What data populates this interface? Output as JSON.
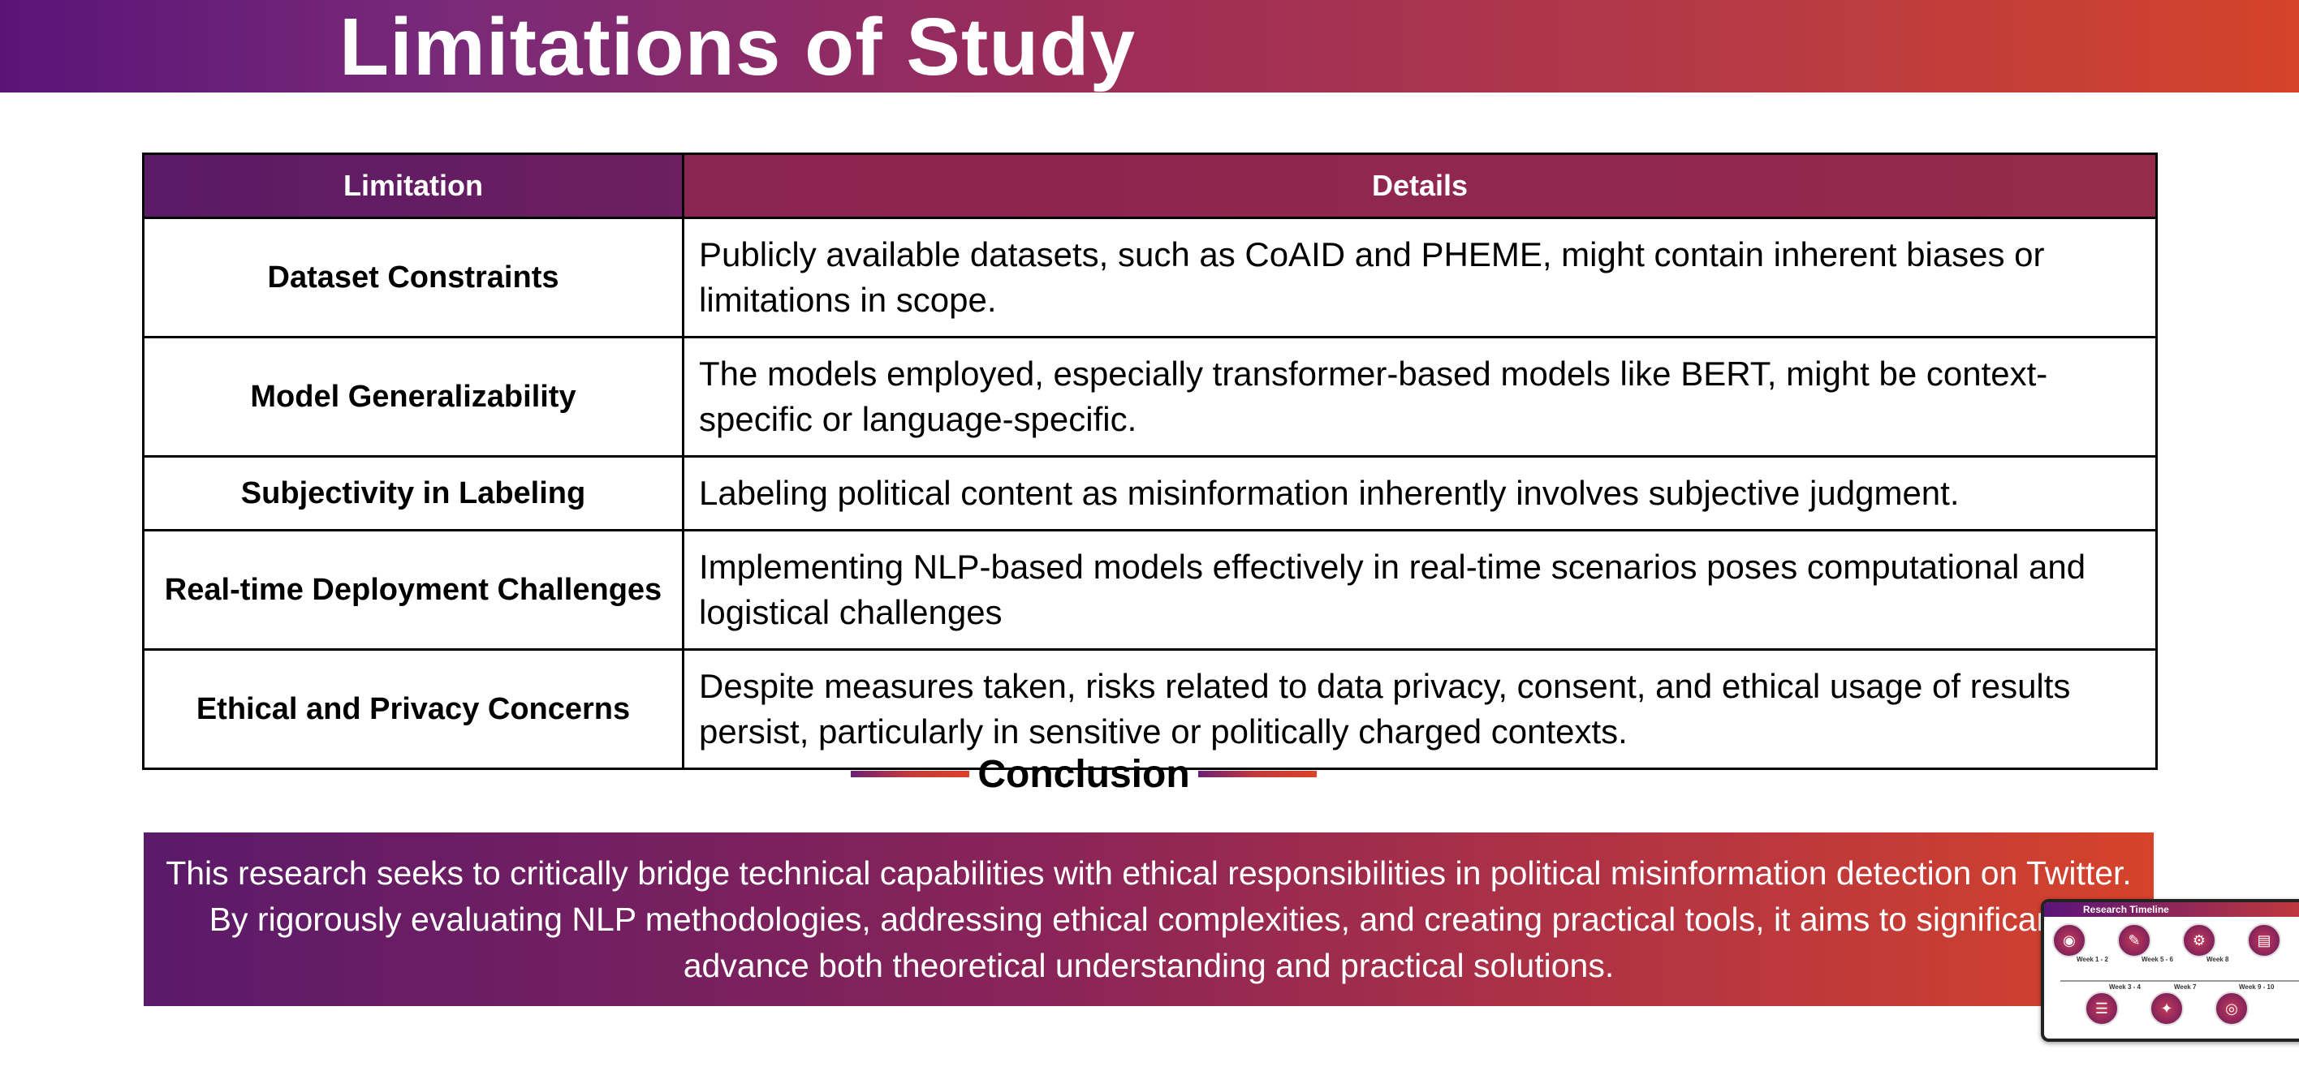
{
  "slide": {
    "title": "Limitations of Study"
  },
  "table": {
    "headers": [
      "Limitation",
      "Details"
    ],
    "rows": [
      {
        "limitation": "Dataset Constraints",
        "details": "Publicly available datasets, such as CoAID and PHEME, might contain inherent biases or limitations in scope."
      },
      {
        "limitation": "Model Generalizability",
        "details": "The models employed, especially transformer-based models like BERT, might be context-specific or language-specific."
      },
      {
        "limitation": "Subjectivity in Labeling",
        "details": "Labeling political content as misinformation inherently involves subjective judgment."
      },
      {
        "limitation": "Real-time Deployment Challenges",
        "details": "Implementing NLP-based models effectively in real-time scenarios poses computational and logistical challenges"
      },
      {
        "limitation": "Ethical and Privacy Concerns",
        "details": "Despite measures taken, risks related to data privacy, consent, and ethical usage of results persist, particularly in sensitive or politically charged contexts."
      }
    ]
  },
  "conclusion": {
    "heading": "Conclusion",
    "text": "This research seeks to critically bridge technical capabilities with ethical responsibilities in political misinformation detection on Twitter. By rigorously evaluating NLP methodologies, addressing ethical complexities, and creating practical tools, it aims to significantly advance both theoretical understanding and practical solutions."
  },
  "thumbnail": {
    "title": "Research Timeline",
    "labels": [
      "Week 1 - 2",
      "Week 3 - 4",
      "Week 5 - 6",
      "Week 7",
      "Week 8",
      "Week 9 - 10"
    ]
  },
  "colors": {
    "gradient_start": "#5a1478",
    "gradient_mid": "#9a2c5a",
    "gradient_end": "#d4432a",
    "header_limitation": "#5a1a66",
    "header_details": "#8a2450"
  }
}
